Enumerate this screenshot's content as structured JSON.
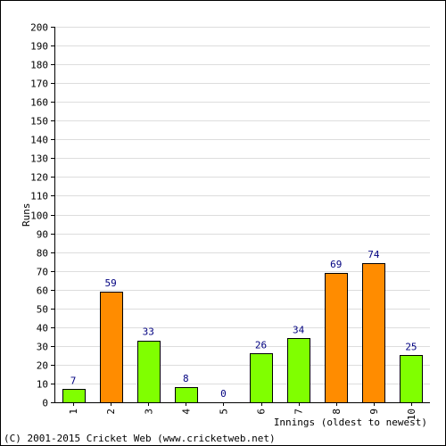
{
  "chart_data": {
    "type": "bar",
    "categories": [
      "1",
      "2",
      "3",
      "4",
      "5",
      "6",
      "7",
      "8",
      "9",
      "10"
    ],
    "values": [
      7,
      59,
      33,
      8,
      0,
      26,
      34,
      69,
      74,
      25
    ],
    "bar_colors": [
      "#80ff00",
      "#ff8c00",
      "#80ff00",
      "#80ff00",
      "#80ff00",
      "#80ff00",
      "#80ff00",
      "#ff8c00",
      "#ff8c00",
      "#80ff00"
    ],
    "xlabel": "Innings (oldest to newest)",
    "ylabel": "Runs",
    "ylim": [
      0,
      200
    ],
    "ytick_step": 10,
    "grid": true
  },
  "colors": {
    "grid": "#dddddd",
    "axis": "#000000",
    "data_label": "#000080",
    "bar_outline": "#000000"
  },
  "footer": {
    "copyright": "(C) 2001-2015 Cricket Web (www.cricketweb.net)"
  }
}
